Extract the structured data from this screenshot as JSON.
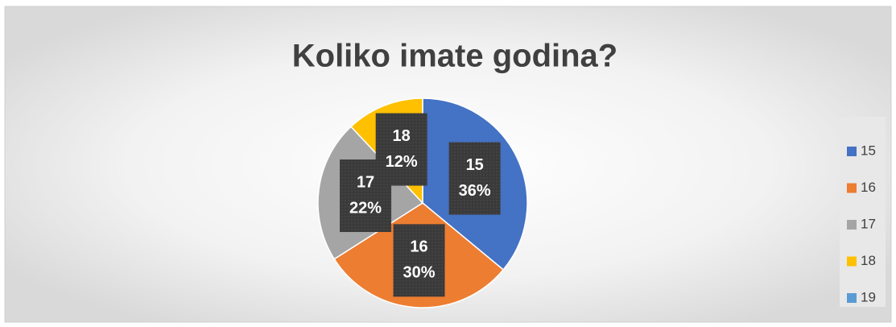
{
  "chart_data": {
    "type": "pie",
    "title": "Koliko imate godina?",
    "categories": [
      "15",
      "16",
      "17",
      "18",
      "19"
    ],
    "values": [
      36,
      30,
      22,
      12,
      0
    ],
    "value_labels": [
      "36%",
      "30%",
      "22%",
      "12%",
      null
    ],
    "colors": [
      "#4472c4",
      "#ed7d31",
      "#a5a5a5",
      "#ffc000",
      "#5b9bd5"
    ],
    "legend": "right"
  }
}
